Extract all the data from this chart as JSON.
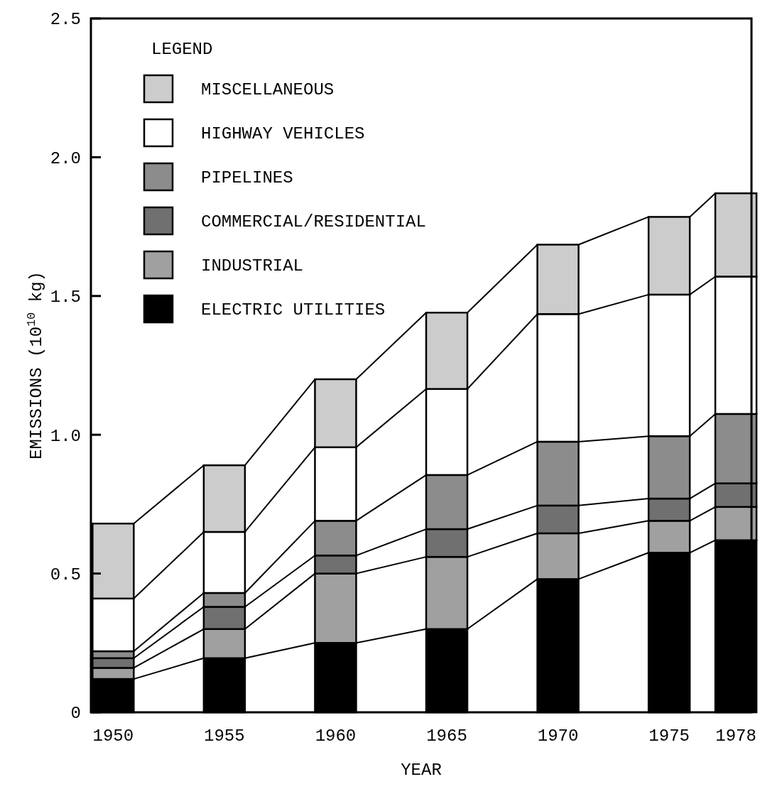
{
  "chart_data": {
    "type": "bar",
    "stacked": true,
    "xlabel": "YEAR",
    "ylabel": "EMISSIONS (10$^{10}$ kg)",
    "legend_title": "LEGEND",
    "legend": "top left",
    "grid": false,
    "x": [
      1950,
      1955,
      1960,
      1965,
      1970,
      1975,
      1978
    ],
    "xlim": [
      1949,
      1978.7
    ],
    "xticks": [
      1950,
      1955,
      1960,
      1965,
      1970,
      1975,
      1978
    ],
    "ylim": [
      0,
      2.5
    ],
    "yticks": [
      0,
      {
        "value": 0.5,
        "label": "0.5"
      },
      {
        "value": 1,
        "label": "1.0"
      },
      {
        "value": 1.5,
        "label": "1.5"
      },
      {
        "value": 2,
        "label": "2.0"
      },
      {
        "value": 2.5,
        "label": "2.5"
      }
    ],
    "series": [
      {
        "name": "ELECTRIC UTILITIES",
        "color": "#000000",
        "values": [
          0.12,
          0.195,
          0.25,
          0.3,
          0.48,
          0.575,
          0.62
        ]
      },
      {
        "name": "INDUSTRIAL",
        "color": "#a0a0a0",
        "values": [
          0.04,
          0.105,
          0.25,
          0.26,
          0.165,
          0.115,
          0.12
        ]
      },
      {
        "name": "COMMERCIAL/RESIDENTIAL",
        "color": "#707070",
        "values": [
          0.035,
          0.08,
          0.065,
          0.1,
          0.1,
          0.08,
          0.085
        ]
      },
      {
        "name": "PIPELINES",
        "color": "#8c8c8c",
        "values": [
          0.025,
          0.05,
          0.125,
          0.195,
          0.23,
          0.225,
          0.25
        ]
      },
      {
        "name": "HIGHWAY VEHICLES",
        "color": "#ffffff",
        "values": [
          0.19,
          0.22,
          0.265,
          0.31,
          0.46,
          0.51,
          0.495
        ]
      },
      {
        "name": "MISCELLANEOUS",
        "color": "#cccccc",
        "values": [
          0.27,
          0.24,
          0.245,
          0.275,
          0.25,
          0.28,
          0.3
        ]
      }
    ]
  }
}
